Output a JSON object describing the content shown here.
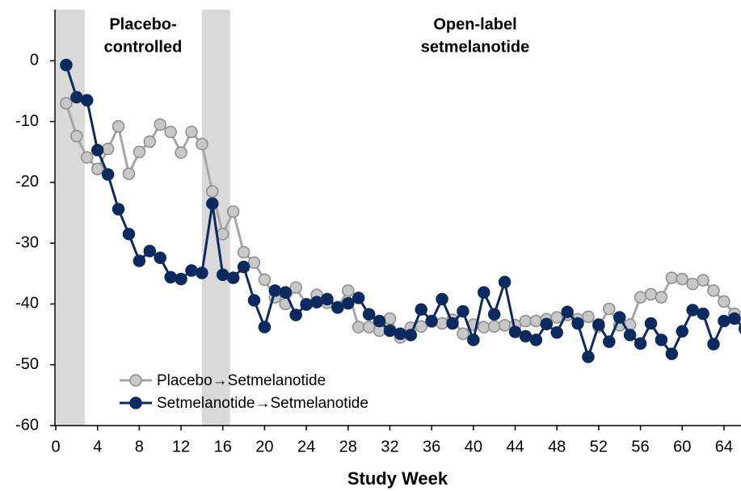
{
  "chart_data": {
    "type": "line",
    "xlabel": "Study Week",
    "annotations": [
      [
        "Placebo-",
        "controlled"
      ],
      [
        "Open-label",
        "setmelanotide"
      ]
    ],
    "shaded_regions": [
      [
        0,
        2.8
      ],
      [
        14,
        16.7
      ]
    ],
    "shade_color": "#d9d9d9",
    "x": [
      1,
      2,
      3,
      4,
      5,
      6,
      7,
      8,
      9,
      10,
      11,
      12,
      13,
      14,
      15,
      16,
      17,
      18,
      19,
      20,
      21,
      22,
      23,
      24,
      25,
      26,
      27,
      28,
      29,
      30,
      31,
      32,
      33,
      34,
      35,
      36,
      37,
      38,
      39,
      40,
      41,
      42,
      43,
      44,
      45,
      46,
      47,
      48,
      49,
      50,
      51,
      52,
      53,
      54,
      55,
      56,
      57,
      58,
      59,
      60,
      61,
      62,
      63,
      64,
      65,
      66
    ],
    "series": [
      {
        "name": "Placebo→Setmelanotide",
        "color": "#a6a6a6",
        "marker_fill": "#c8c8c8",
        "marker_stroke": "#8c8c8c",
        "values": [
          -7.0,
          -12.4,
          -15.9,
          -17.8,
          -14.5,
          -10.8,
          -18.6,
          -15.0,
          -13.3,
          -10.5,
          -11.7,
          -15.1,
          -11.7,
          -13.7,
          -21.5,
          -28.5,
          -24.8,
          -31.5,
          -33.2,
          -36.0,
          -38.9,
          -40.0,
          -37.3,
          -40.0,
          -38.5,
          -39.8,
          -40.5,
          -37.8,
          -43.8,
          -43.8,
          -44.4,
          -42.4,
          -45.5,
          -43.9,
          -43.7,
          -42.9,
          -43.2,
          -42.6,
          -44.9,
          -43.4,
          -43.8,
          -43.7,
          -43.5,
          -43.5,
          -42.8,
          -42.8,
          -42.5,
          -42.2,
          -41.8,
          -42.5,
          -42.1,
          -43.7,
          -40.8,
          -43.5,
          -43.4,
          -38.9,
          -38.4,
          -38.9,
          -35.7,
          -35.9,
          -36.7,
          -36.1,
          -37.8,
          -39.6,
          -41.6,
          -43.0
        ]
      },
      {
        "name": "Setmelanotide→Setmelanotide",
        "color": "#0d2a5e",
        "marker_fill": "#0d2a5e",
        "marker_stroke": "#0d2a5e",
        "values": [
          -0.7,
          -6.0,
          -6.5,
          -14.7,
          -18.7,
          -24.4,
          -28.5,
          -32.9,
          -31.3,
          -32.4,
          -35.6,
          -35.9,
          -34.5,
          -34.9,
          -23.5,
          -35.2,
          -35.7,
          -33.9,
          -39.4,
          -43.8,
          -37.8,
          -38.1,
          -41.8,
          -40.1,
          -39.7,
          -39.2,
          -40.6,
          -39.9,
          -39.0,
          -41.7,
          -42.8,
          -44.4,
          -44.9,
          -45.1,
          -40.9,
          -42.8,
          -39.2,
          -43.2,
          -41.2,
          -45.9,
          -38.1,
          -41.7,
          -36.4,
          -44.6,
          -45.3,
          -45.9,
          -43.3,
          -44.7,
          -41.3,
          -43.2,
          -48.7,
          -43.4,
          -46.2,
          -42.2,
          -45.1,
          -46.5,
          -43.2,
          -45.9,
          -48.2,
          -44.5,
          -41.0,
          -41.6,
          -46.6,
          -42.8,
          -42.4,
          -44.1
        ]
      }
    ],
    "xlim": [
      0,
      65.6
    ],
    "xticks": [
      0,
      4,
      8,
      12,
      16,
      20,
      24,
      28,
      32,
      36,
      40,
      44,
      48,
      52,
      56,
      60,
      64
    ],
    "ylim": [
      -60,
      8.4
    ],
    "yticks": [
      0,
      -10,
      -20,
      -30,
      -40,
      -50,
      -60
    ],
    "legend": "lower left"
  }
}
